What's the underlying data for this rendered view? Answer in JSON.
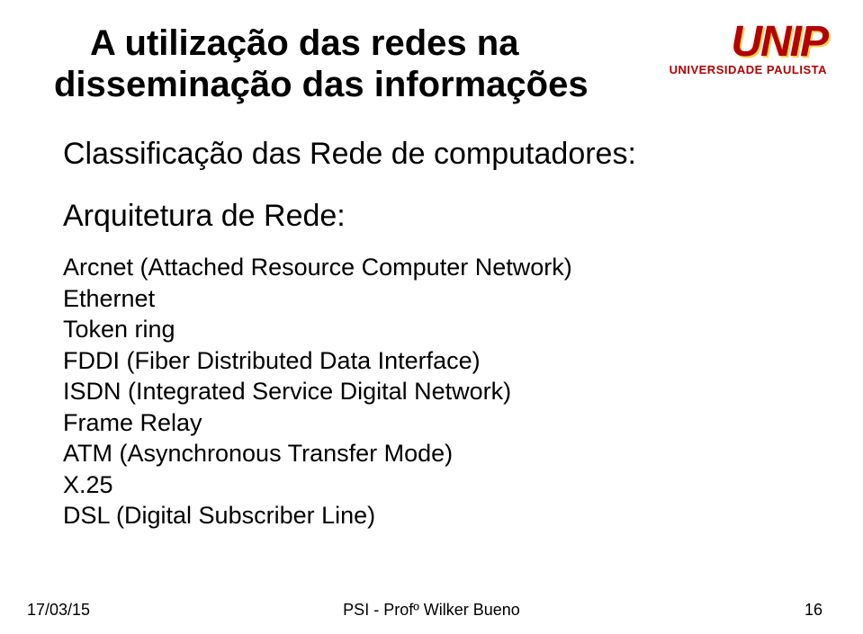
{
  "title": {
    "line1": "A utilização das redes na",
    "line2": "disseminação das informações"
  },
  "logo": {
    "main": "UNIP",
    "sub": "UNIVERSIDADE PAULISTA"
  },
  "subtitle": "Classificação das Rede de computadores:",
  "section_heading": "Arquitetura de Rede:",
  "items": [
    "Arcnet (Attached Resource Computer Network)",
    "Ethernet",
    "Token ring",
    "FDDI (Fiber Distributed Data Interface)",
    "ISDN (Integrated Service Digital Network)",
    "Frame Relay",
    "ATM (Asynchronous Transfer Mode)",
    "X.25",
    "DSL (Digital Subscriber Line)"
  ],
  "footer": {
    "date": "17/03/15",
    "center": "PSI - Profº Wilker Bueno",
    "page": "16"
  },
  "colors": {
    "text": "#000000",
    "logo_red": "#b30000",
    "logo_shadow": "#f5d050",
    "background": "#ffffff"
  },
  "fonts": {
    "title_size": 40,
    "subtitle_size": 34,
    "list_size": 27,
    "footer_size": 18
  }
}
